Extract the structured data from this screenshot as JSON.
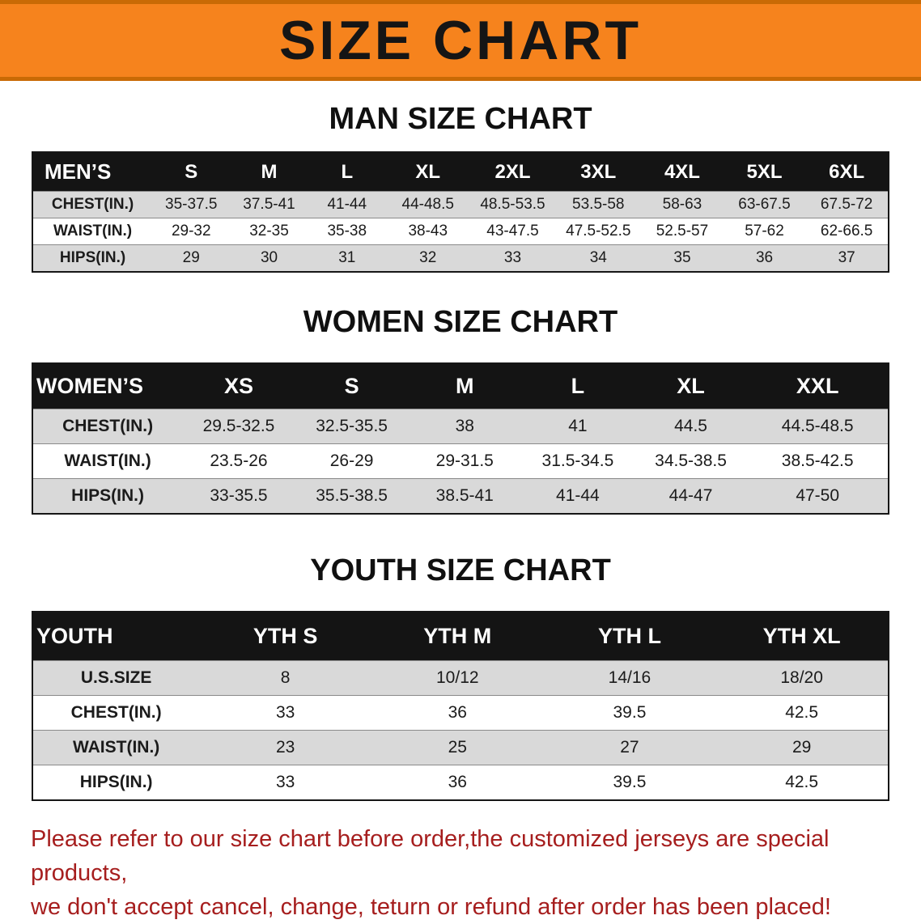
{
  "banner": {
    "title": "SIZE CHART"
  },
  "sections": [
    {
      "heading": "MAN SIZE CHART",
      "table": {
        "header": [
          "MEN’S",
          "S",
          "M",
          "L",
          "XL",
          "2XL",
          "3XL",
          "4XL",
          "5XL",
          "6XL"
        ],
        "rows": [
          [
            "CHEST(IN.)",
            "35-37.5",
            "37.5-41",
            "41-44",
            "44-48.5",
            "48.5-53.5",
            "53.5-58",
            "58-63",
            "63-67.5",
            "67.5-72"
          ],
          [
            "WAIST(IN.)",
            "29-32",
            "32-35",
            "35-38",
            "38-43",
            "43-47.5",
            "47.5-52.5",
            "52.5-57",
            "57-62",
            "62-66.5"
          ],
          [
            "HIPS(IN.)",
            "29",
            "30",
            "31",
            "32",
            "33",
            "34",
            "35",
            "36",
            "37"
          ]
        ]
      }
    },
    {
      "heading": "WOMEN SIZE CHART",
      "table": {
        "header": [
          "WOMEN’S",
          "XS",
          "S",
          "M",
          "L",
          "XL",
          "XXL"
        ],
        "rows": [
          [
            "CHEST(IN.)",
            "29.5-32.5",
            "32.5-35.5",
            "38",
            "41",
            "44.5",
            "44.5-48.5"
          ],
          [
            "WAIST(IN.)",
            "23.5-26",
            "26-29",
            "29-31.5",
            "31.5-34.5",
            "34.5-38.5",
            "38.5-42.5"
          ],
          [
            "HIPS(IN.)",
            "33-35.5",
            "35.5-38.5",
            "38.5-41",
            "41-44",
            "44-47",
            "47-50"
          ]
        ]
      }
    },
    {
      "heading": "YOUTH SIZE CHART",
      "table": {
        "header": [
          "YOUTH",
          "YTH S",
          "YTH M",
          "YTH L",
          "YTH XL"
        ],
        "rows": [
          [
            "U.S.SIZE",
            "8",
            "10/12",
            "14/16",
            "18/20"
          ],
          [
            "CHEST(IN.)",
            "33",
            "36",
            "39.5",
            "42.5"
          ],
          [
            "WAIST(IN.)",
            "23",
            "25",
            "27",
            "29"
          ],
          [
            "HIPS(IN.)",
            "33",
            "36",
            "39.5",
            "42.5"
          ]
        ]
      }
    }
  ],
  "footer": {
    "line1": "Please refer to our size chart before order,the customized jerseys are special products,",
    "line2": "we don't accept cancel, change, teturn or refund after order has been placed!"
  }
}
